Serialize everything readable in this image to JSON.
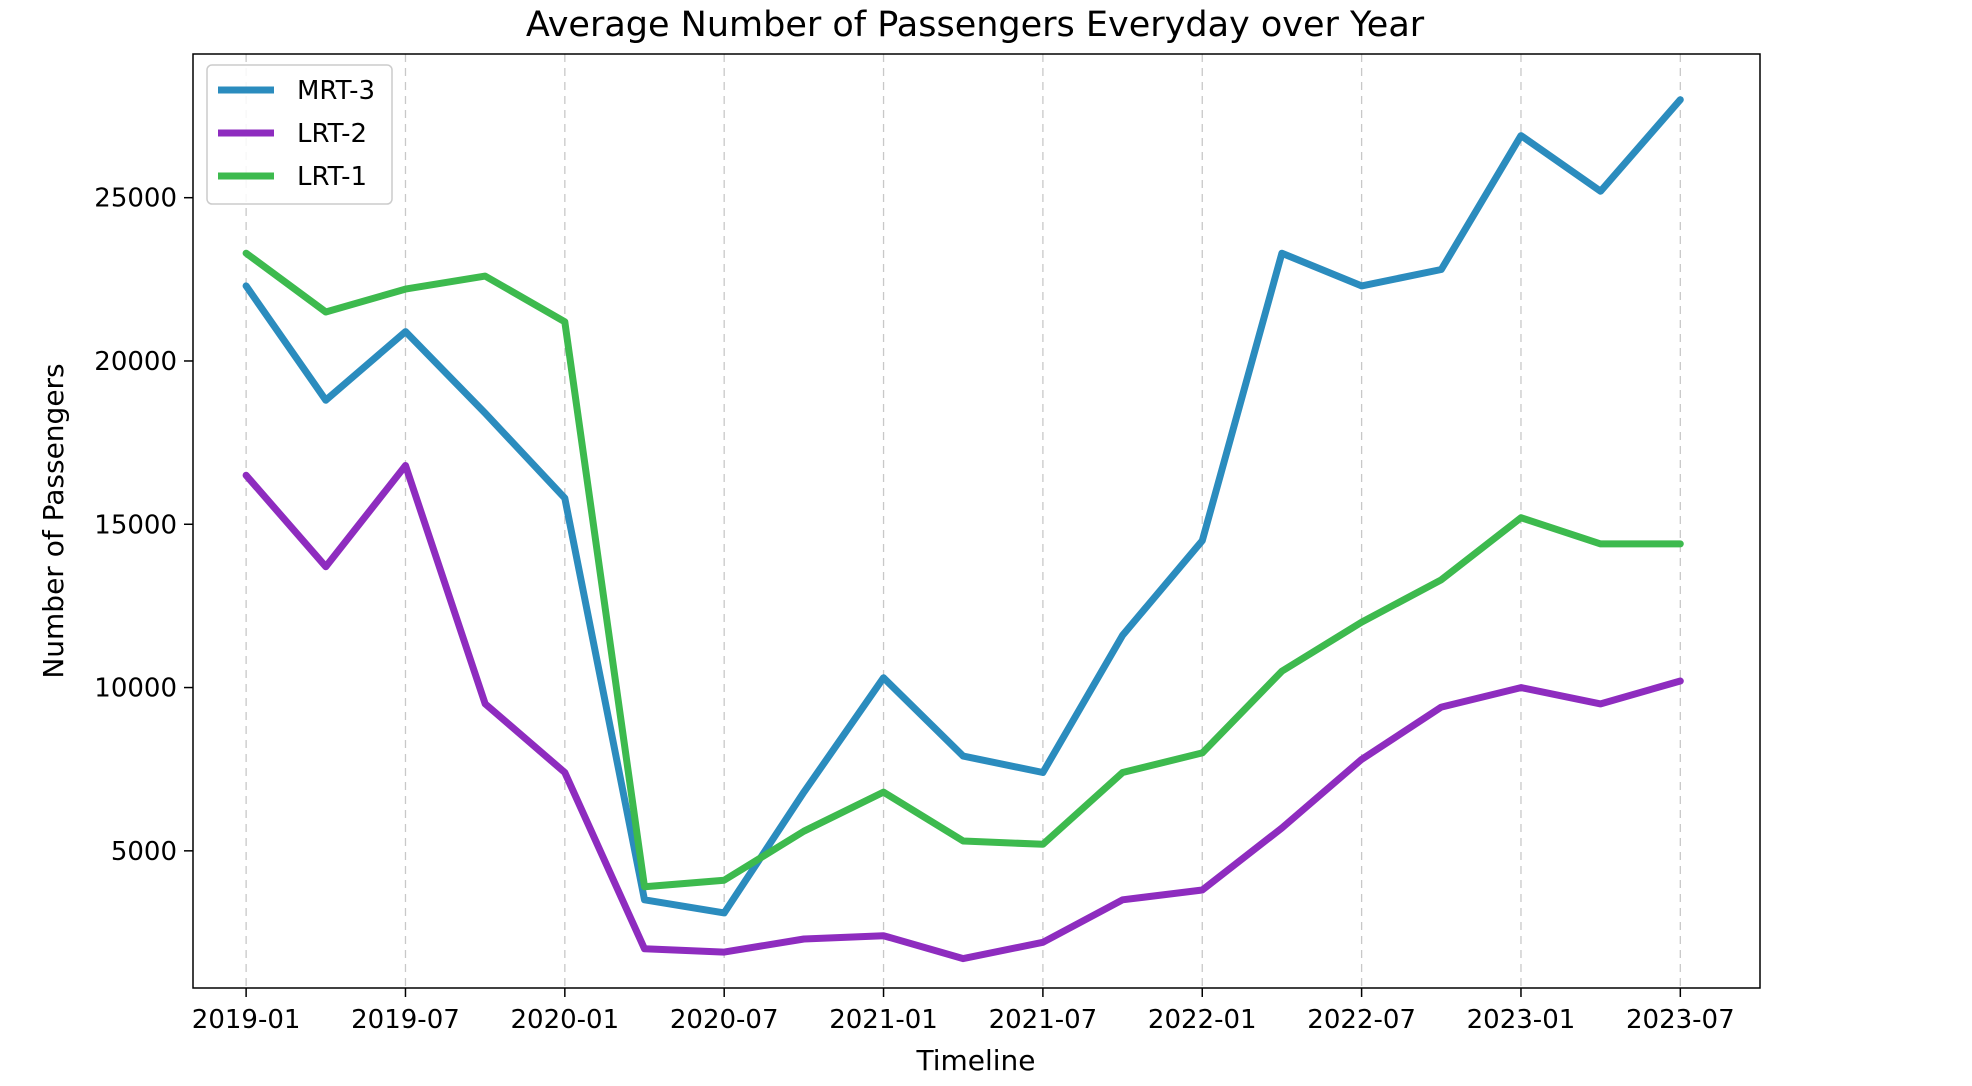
{
  "chart_data": {
    "type": "line",
    "title": "Average Number of Passengers Everyday over Year",
    "xlabel": "Timeline",
    "ylabel": "Number of Passengers",
    "x": [
      "2019-01",
      "2019-04",
      "2019-07",
      "2019-10",
      "2020-01",
      "2020-04",
      "2020-07",
      "2020-10",
      "2021-01",
      "2021-04",
      "2021-07",
      "2021-10",
      "2022-01",
      "2022-04",
      "2022-07",
      "2022-10",
      "2023-01",
      "2023-04",
      "2023-07"
    ],
    "x_ticks": [
      "2019-01",
      "2019-07",
      "2020-01",
      "2020-07",
      "2021-01",
      "2021-07",
      "2022-01",
      "2022-07",
      "2023-01",
      "2023-07"
    ],
    "y_ticks": [
      5000,
      10000,
      15000,
      20000,
      25000
    ],
    "ylim": [
      800,
      29400
    ],
    "xlim": [
      "2018-11",
      "2023-10"
    ],
    "grid": "vertical dashed",
    "legend_position": "top-left",
    "series": [
      {
        "name": "MRT-3",
        "color": "#2b8cbe",
        "values": [
          22300,
          18800,
          20900,
          18400,
          15800,
          3500,
          3100,
          6800,
          10300,
          7900,
          7400,
          11600,
          14500,
          23300,
          22300,
          22800,
          26900,
          25200,
          28000
        ]
      },
      {
        "name": "LRT-2",
        "color": "#8e2cbf",
        "values": [
          16500,
          13700,
          16800,
          9500,
          7400,
          2000,
          1900,
          2300,
          2400,
          1700,
          2200,
          3500,
          3800,
          5700,
          7800,
          9400,
          10000,
          9500,
          10200
        ]
      },
      {
        "name": "LRT-1",
        "color": "#3dba4e",
        "values": [
          23300,
          21500,
          22200,
          22600,
          21200,
          3900,
          4100,
          5600,
          6800,
          5300,
          5200,
          7400,
          8000,
          10500,
          12000,
          13300,
          15200,
          14400,
          14400
        ]
      }
    ]
  }
}
